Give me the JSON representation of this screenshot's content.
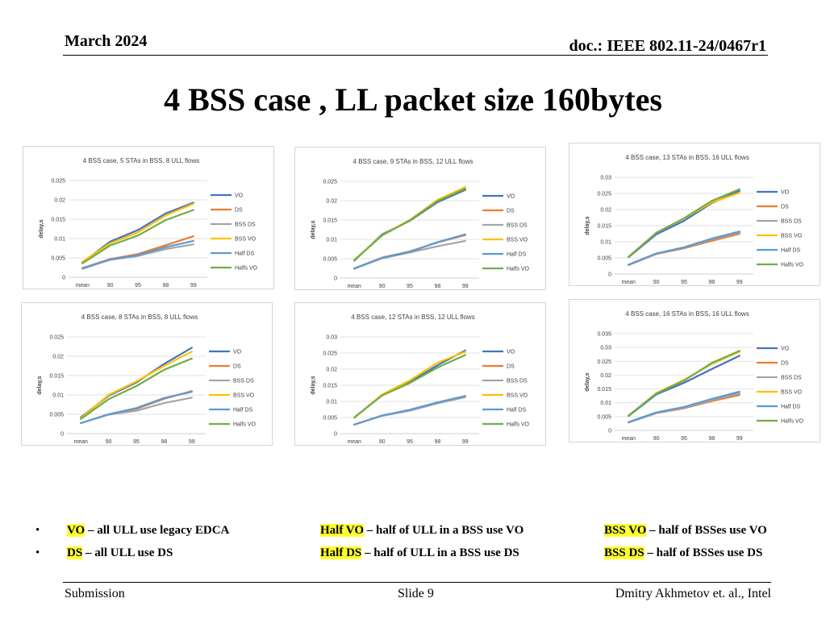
{
  "header": {
    "date": "March 2024",
    "doc": "doc.: IEEE 802.11-24/0467r1"
  },
  "title": "4 BSS case , LL packet size 160bytes",
  "chart_data": [
    {
      "type": "line",
      "title": "4 BSS case, 5 STAs in BSS, 8 ULL flows",
      "ylabel": "delay,s",
      "categories": [
        "mean",
        "90",
        "95",
        "98",
        "99"
      ],
      "ylim": [
        0,
        0.025
      ],
      "yticks": [
        "0",
        "0.005",
        "0.01",
        "0.015",
        "0.02",
        "0.025"
      ],
      "series": [
        {
          "name": "VO",
          "color": "#4472C4",
          "values": [
            0.0038,
            0.0092,
            0.0122,
            0.0165,
            0.0193
          ]
        },
        {
          "name": "DS",
          "color": "#ED7D31",
          "values": [
            0.0024,
            0.0047,
            0.006,
            0.0083,
            0.0106
          ]
        },
        {
          "name": "BSS DS",
          "color": "#A5A5A5",
          "values": [
            0.0023,
            0.0045,
            0.0055,
            0.0073,
            0.0085
          ]
        },
        {
          "name": "BSS VO",
          "color": "#FFC000",
          "values": [
            0.004,
            0.0088,
            0.0116,
            0.016,
            0.019
          ]
        },
        {
          "name": "Half DS",
          "color": "#5B9BD5",
          "values": [
            0.0022,
            0.0046,
            0.0057,
            0.0078,
            0.0094
          ]
        },
        {
          "name": "Halfs VO",
          "color": "#70AD47",
          "values": [
            0.0036,
            0.0082,
            0.0108,
            0.0148,
            0.0174
          ]
        }
      ]
    },
    {
      "type": "line",
      "title": "4 BSS case, 9 STAs in BSS, 12 ULL flows",
      "ylabel": "delay,s",
      "categories": [
        "mean",
        "90",
        "95",
        "98",
        "99"
      ],
      "ylim": [
        0,
        0.025
      ],
      "yticks": [
        "0",
        "0.005",
        "0.01",
        "0.015",
        "0.02",
        "0.025"
      ],
      "series": [
        {
          "name": "VO",
          "color": "#4472C4",
          "values": [
            0.0045,
            0.0113,
            0.0148,
            0.0196,
            0.0228
          ]
        },
        {
          "name": "DS",
          "color": "#ED7D31",
          "values": [
            0.0025,
            0.0053,
            0.0069,
            0.0092,
            0.0111
          ]
        },
        {
          "name": "BSS DS",
          "color": "#A5A5A5",
          "values": [
            0.0024,
            0.0051,
            0.0066,
            0.0082,
            0.0096
          ]
        },
        {
          "name": "BSS VO",
          "color": "#FFC000",
          "values": [
            0.0047,
            0.0111,
            0.015,
            0.0202,
            0.0235
          ]
        },
        {
          "name": "Half DS",
          "color": "#5B9BD5",
          "values": [
            0.0025,
            0.0052,
            0.0068,
            0.0093,
            0.0113
          ]
        },
        {
          "name": "Halfs VO",
          "color": "#70AD47",
          "values": [
            0.0046,
            0.011,
            0.0149,
            0.0199,
            0.0231
          ]
        }
      ]
    },
    {
      "type": "line",
      "title": "4 BSS case, 13 STAs in BSS, 16 ULL flows",
      "ylabel": "delay,s",
      "categories": [
        "mean",
        "90",
        "95",
        "98",
        "99"
      ],
      "ylim": [
        0,
        0.03
      ],
      "yticks": [
        "0",
        "0.005",
        "0.01",
        "0.015",
        "0.02",
        "0.025",
        "0.03"
      ],
      "series": [
        {
          "name": "VO",
          "color": "#4472C4",
          "values": [
            0.0052,
            0.0123,
            0.0165,
            0.022,
            0.0258
          ]
        },
        {
          "name": "DS",
          "color": "#ED7D31",
          "values": [
            0.0028,
            0.0062,
            0.008,
            0.0103,
            0.0125
          ]
        },
        {
          "name": "BSS DS",
          "color": "#A5A5A5",
          "values": [
            0.0028,
            0.0063,
            0.0082,
            0.0108,
            0.013
          ]
        },
        {
          "name": "BSS VO",
          "color": "#FFC000",
          "values": [
            0.0054,
            0.0128,
            0.0172,
            0.0222,
            0.0252
          ]
        },
        {
          "name": "Half DS",
          "color": "#5B9BD5",
          "values": [
            0.0029,
            0.0064,
            0.0083,
            0.011,
            0.0132
          ]
        },
        {
          "name": "Halfs VO",
          "color": "#70AD47",
          "values": [
            0.0053,
            0.0128,
            0.0173,
            0.0227,
            0.0263
          ]
        }
      ]
    },
    {
      "type": "line",
      "title": "4 BSS case, 8 STAs in BSS, 8 ULL flows",
      "ylabel": "delay,s",
      "categories": [
        "mean",
        "90",
        "95",
        "98",
        "99"
      ],
      "ylim": [
        0,
        0.025
      ],
      "yticks": [
        "0",
        "0.005",
        "0.01",
        "0.015",
        "0.02",
        "0.025"
      ],
      "series": [
        {
          "name": "VO",
          "color": "#4472C4",
          "values": [
            0.0042,
            0.0098,
            0.0132,
            0.018,
            0.0222
          ]
        },
        {
          "name": "DS",
          "color": "#ED7D31",
          "values": [
            0.0027,
            0.005,
            0.0064,
            0.009,
            0.011
          ]
        },
        {
          "name": "BSS DS",
          "color": "#A5A5A5",
          "values": [
            0.0027,
            0.0049,
            0.0059,
            0.0079,
            0.0093
          ]
        },
        {
          "name": "BSS VO",
          "color": "#FFC000",
          "values": [
            0.004,
            0.01,
            0.0135,
            0.0175,
            0.0212
          ]
        },
        {
          "name": "Half DS",
          "color": "#5B9BD5",
          "values": [
            0.0027,
            0.005,
            0.0066,
            0.0092,
            0.0108
          ]
        },
        {
          "name": "Halfs VO",
          "color": "#70AD47",
          "values": [
            0.0038,
            0.0089,
            0.0123,
            0.0165,
            0.0194
          ]
        }
      ]
    },
    {
      "type": "line",
      "title": "4 BSS case, 12 STAs in BSS, 12 ULL flows",
      "ylabel": "delay,s",
      "categories": [
        "mean",
        "90",
        "95",
        "98",
        "99"
      ],
      "ylim": [
        0,
        0.03
      ],
      "yticks": [
        "0",
        "0.005",
        "0.01",
        "0.015",
        "0.02",
        "0.025",
        "0.03"
      ],
      "series": [
        {
          "name": "VO",
          "color": "#4472C4",
          "values": [
            0.005,
            0.012,
            0.016,
            0.0212,
            0.0258
          ]
        },
        {
          "name": "DS",
          "color": "#ED7D31",
          "values": [
            0.0028,
            0.0056,
            0.0073,
            0.0096,
            0.0116
          ]
        },
        {
          "name": "BSS DS",
          "color": "#A5A5A5",
          "values": [
            0.0028,
            0.0055,
            0.0071,
            0.0094,
            0.0113
          ]
        },
        {
          "name": "BSS VO",
          "color": "#FFC000",
          "values": [
            0.0049,
            0.0121,
            0.0165,
            0.022,
            0.0254
          ]
        },
        {
          "name": "Half DS",
          "color": "#5B9BD5",
          "values": [
            0.0028,
            0.0056,
            0.0074,
            0.0097,
            0.0117
          ]
        },
        {
          "name": "Halfs VO",
          "color": "#70AD47",
          "values": [
            0.005,
            0.0118,
            0.0157,
            0.0205,
            0.0244
          ]
        }
      ]
    },
    {
      "type": "line",
      "title": "4 BSS case, 16 STAs in BSS, 16 ULL flows",
      "ylabel": "delay,s",
      "categories": [
        "mean",
        "90",
        "95",
        "98",
        "99"
      ],
      "ylim": [
        0,
        0.035
      ],
      "yticks": [
        "0",
        "0.005",
        "0.01",
        "0.015",
        "0.02",
        "0.025",
        "0.03",
        "0.035"
      ],
      "series": [
        {
          "name": "VO",
          "color": "#4472C4",
          "values": [
            0.0052,
            0.013,
            0.0172,
            0.0222,
            0.027
          ]
        },
        {
          "name": "DS",
          "color": "#ED7D31",
          "values": [
            0.0029,
            0.0062,
            0.008,
            0.0106,
            0.0128
          ]
        },
        {
          "name": "BSS DS",
          "color": "#A5A5A5",
          "values": [
            0.0029,
            0.0063,
            0.0082,
            0.011,
            0.0134
          ]
        },
        {
          "name": "BSS VO",
          "color": "#FFC000",
          "values": [
            0.0053,
            0.0135,
            0.0183,
            0.024,
            0.0285
          ]
        },
        {
          "name": "Half DS",
          "color": "#5B9BD5",
          "values": [
            0.003,
            0.0065,
            0.0085,
            0.0114,
            0.014
          ]
        },
        {
          "name": "Halfs VO",
          "color": "#70AD47",
          "values": [
            0.0054,
            0.0133,
            0.018,
            0.0244,
            0.0288
          ]
        }
      ]
    }
  ],
  "legend_notes": {
    "row1": [
      {
        "term": "VO",
        "desc": " – all ULL use legacy EDCA"
      },
      {
        "term": "Half VO",
        "desc": " – half of ULL in a BSS use VO"
      },
      {
        "term": "BSS VO",
        "desc": " – half of BSSes use VO"
      }
    ],
    "row2": [
      {
        "term": "DS",
        "desc": " – all ULL use DS"
      },
      {
        "term": "Half DS",
        "desc": " – half of ULL in a BSS use DS"
      },
      {
        "term": "BSS DS",
        "desc": " – half of BSSes use DS"
      }
    ],
    "bullet": "•"
  },
  "footer": {
    "left": "Submission",
    "center": "Slide 9",
    "right": "Dmitry Akhmetov et. al., Intel"
  }
}
